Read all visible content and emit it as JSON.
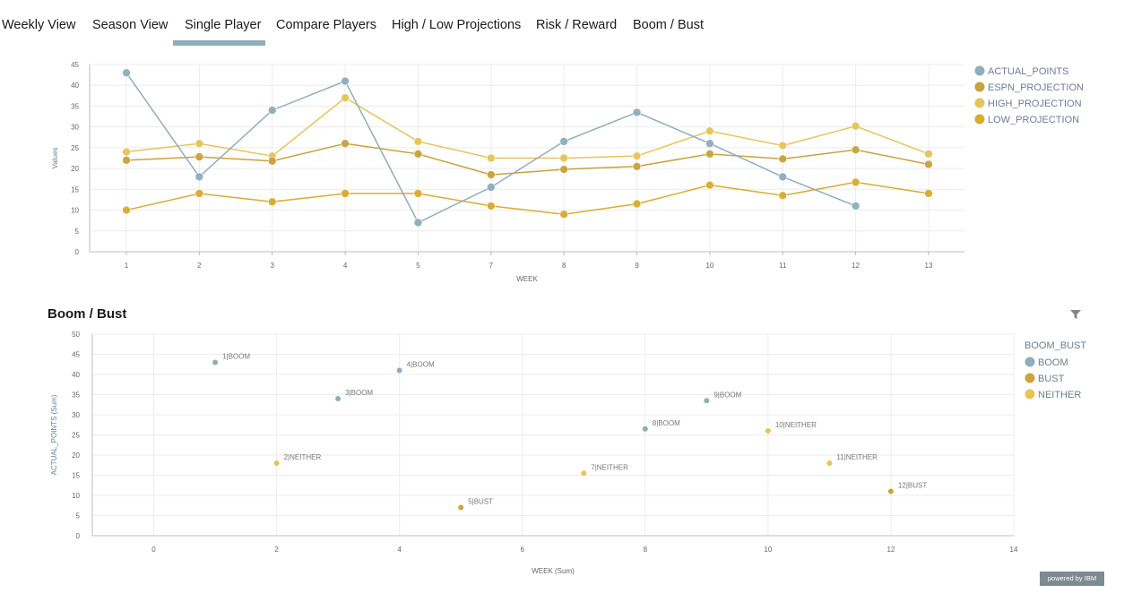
{
  "tabs": [
    {
      "label": "Weekly View"
    },
    {
      "label": "Season View"
    },
    {
      "label": "Single Player",
      "active": true
    },
    {
      "label": "Compare Players"
    },
    {
      "label": "High / Low Projections"
    },
    {
      "label": "Risk / Reward"
    },
    {
      "label": "Boom / Bust"
    }
  ],
  "colors": {
    "actual": "#8fadbc",
    "espn": "#c9a23a",
    "high": "#e6c45a",
    "low": "#d9ab2e",
    "boom": "#8fadbc",
    "bust": "#cfa23b",
    "neither": "#e8c457",
    "active_tab_underline": "#8eadbd",
    "grid": "#ececec"
  },
  "line_chart": {
    "chart_data": {
      "type": "line",
      "categories": [
        "1",
        "2",
        "3",
        "4",
        "5",
        "7",
        "8",
        "9",
        "10",
        "11",
        "12",
        "13"
      ],
      "series": [
        {
          "name": "ACTUAL_POINTS",
          "values": [
            43,
            18,
            34,
            41,
            7,
            15.5,
            26.5,
            33.5,
            26,
            18,
            11,
            null
          ]
        },
        {
          "name": "ESPN_PROJECTION",
          "values": [
            22,
            22.8,
            21.8,
            26,
            23.5,
            18.5,
            19.8,
            20.5,
            23.5,
            22.3,
            24.5,
            21
          ]
        },
        {
          "name": "HIGH_PROJECTION",
          "values": [
            24,
            26,
            23,
            37,
            26.5,
            22.5,
            22.5,
            23,
            29,
            25.5,
            30.2,
            23.5
          ]
        },
        {
          "name": "LOW_PROJECTION",
          "values": [
            10,
            14,
            12,
            14,
            14,
            11,
            9,
            11.5,
            16,
            13.5,
            16.7,
            14
          ]
        }
      ],
      "xlabel": "WEEK",
      "ylabel": "Values",
      "ylim": [
        0,
        45
      ],
      "yticks": [
        0,
        5,
        10,
        15,
        20,
        25,
        30,
        35,
        40,
        45
      ],
      "grid": true,
      "legend": "right"
    }
  },
  "section_title": "Boom / Bust",
  "filter_icon": "filter-icon",
  "scatter_chart": {
    "chart_data": {
      "type": "scatter",
      "series": [
        {
          "name": "BOOM",
          "points": [
            {
              "x": 1,
              "y": 43,
              "label": "1|BOOM"
            },
            {
              "x": 3,
              "y": 34,
              "label": "3|BOOM"
            },
            {
              "x": 4,
              "y": 41,
              "label": "4|BOOM"
            },
            {
              "x": 8,
              "y": 26.5,
              "label": "8|BOOM"
            },
            {
              "x": 9,
              "y": 33.5,
              "label": "9|BOOM"
            }
          ]
        },
        {
          "name": "BUST",
          "points": [
            {
              "x": 5,
              "y": 7,
              "label": "5|BUST"
            },
            {
              "x": 12,
              "y": 11,
              "label": "12|BUST"
            }
          ]
        },
        {
          "name": "NEITHER",
          "points": [
            {
              "x": 2,
              "y": 18,
              "label": "2|NEITHER"
            },
            {
              "x": 7,
              "y": 15.5,
              "label": "7|NEITHER"
            },
            {
              "x": 10,
              "y": 26,
              "label": "10|NEITHER"
            },
            {
              "x": 11,
              "y": 18,
              "label": "11|NEITHER"
            }
          ]
        }
      ],
      "legend_title": "BOOM_BUST",
      "xlabel": "WEEK (Sum)",
      "ylabel": "ACTUAL_POINTS (Sum)",
      "xlim": [
        -1,
        14
      ],
      "ylim": [
        0,
        50
      ],
      "xticks": [
        0,
        2,
        4,
        6,
        8,
        10,
        12,
        14
      ],
      "yticks": [
        0,
        5,
        10,
        15,
        20,
        25,
        30,
        35,
        40,
        45,
        50
      ],
      "grid": true,
      "legend": "right"
    }
  },
  "footer": {
    "powered_by": "powered by IBM"
  }
}
